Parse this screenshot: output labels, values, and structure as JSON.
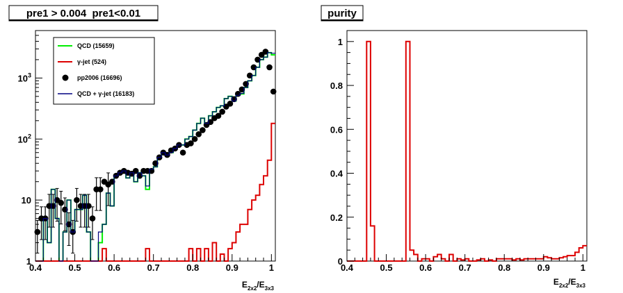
{
  "chart_data": [
    {
      "type": "histogram",
      "title": "pre1 > 0.004  pre1<0.01",
      "xlabel": "E_{2x2}/E_{3x3}",
      "ylabel": "",
      "xlim": [
        0.4,
        1.01
      ],
      "ylim": [
        1,
        6000
      ],
      "yscale": "log",
      "grid": false,
      "legend_position": "top-left",
      "x_ticks": [
        "0.4",
        "0.5",
        "0.6",
        "0.7",
        "0.8",
        "0.9",
        "1"
      ],
      "y_ticks": [
        {
          "value": 1,
          "label": "1"
        },
        {
          "value": 10,
          "label": "10"
        },
        {
          "value": 100,
          "label": "10^2"
        },
        {
          "value": 1000,
          "label": "10^3"
        }
      ],
      "bin_edges": [
        0.4,
        0.41,
        0.42,
        0.43,
        0.44,
        0.45,
        0.46,
        0.47,
        0.48,
        0.49,
        0.5,
        0.51,
        0.52,
        0.53,
        0.54,
        0.55,
        0.56,
        0.57,
        0.58,
        0.59,
        0.6,
        0.61,
        0.62,
        0.63,
        0.64,
        0.65,
        0.66,
        0.67,
        0.68,
        0.69,
        0.7,
        0.71,
        0.72,
        0.73,
        0.74,
        0.75,
        0.76,
        0.77,
        0.78,
        0.79,
        0.8,
        0.81,
        0.82,
        0.83,
        0.84,
        0.85,
        0.86,
        0.87,
        0.88,
        0.89,
        0.9,
        0.91,
        0.92,
        0.93,
        0.94,
        0.95,
        0.96,
        0.97,
        0.98,
        0.99,
        1.0,
        1.01
      ],
      "series": [
        {
          "name": "QCD (15659)",
          "kind": "step",
          "color": "#00ee00",
          "values": [
            1,
            1,
            5,
            2,
            15,
            5,
            1,
            3,
            10,
            3,
            7,
            7,
            12,
            3,
            1,
            1,
            2,
            4,
            13,
            8,
            25,
            28,
            30,
            23,
            28,
            20,
            28,
            25,
            15,
            32,
            35,
            50,
            60,
            55,
            60,
            70,
            80,
            80,
            100,
            110,
            140,
            180,
            220,
            180,
            240,
            280,
            330,
            350,
            460,
            500,
            420,
            520,
            550,
            700,
            900,
            1100,
            1500,
            2000,
            2200,
            2600,
            2400
          ],
          "color_role": "legend"
        },
        {
          "name": "γ-jet (524)",
          "kind": "step",
          "color": "#dd0000",
          "values": [
            0,
            0,
            0,
            0,
            0,
            0,
            0,
            0,
            0,
            0,
            0,
            0,
            0,
            0,
            0,
            0,
            0,
            1.6,
            0,
            0,
            0,
            0,
            0,
            0,
            0,
            0,
            0,
            0,
            1.6,
            0,
            0,
            0,
            0,
            0,
            0,
            0,
            0,
            0,
            0,
            1.6,
            0,
            1.6,
            0,
            1.6,
            1,
            2,
            0,
            1.3,
            1,
            1.6,
            2,
            3,
            4,
            4,
            7,
            10,
            12,
            18,
            25,
            45,
            180
          ]
        },
        {
          "name": "pp2006 (16696)",
          "kind": "markers",
          "color": "#000000",
          "x": [
            0.405,
            0.415,
            0.425,
            0.435,
            0.445,
            0.455,
            0.465,
            0.475,
            0.485,
            0.495,
            0.505,
            0.515,
            0.525,
            0.535,
            0.545,
            0.555,
            0.565,
            0.575,
            0.585,
            0.595,
            0.605,
            0.615,
            0.625,
            0.635,
            0.645,
            0.655,
            0.665,
            0.675,
            0.685,
            0.695,
            0.705,
            0.715,
            0.725,
            0.735,
            0.745,
            0.755,
            0.765,
            0.775,
            0.785,
            0.795,
            0.805,
            0.815,
            0.825,
            0.835,
            0.845,
            0.855,
            0.865,
            0.875,
            0.885,
            0.895,
            0.905,
            0.915,
            0.925,
            0.935,
            0.945,
            0.955,
            0.965,
            0.975,
            0.985,
            0.995,
            1.005
          ],
          "values": [
            3,
            5,
            5,
            8,
            8,
            10,
            9,
            7,
            4,
            3,
            10,
            8,
            8,
            8,
            5,
            15,
            15,
            20,
            18,
            20,
            25,
            28,
            30,
            28,
            27,
            30,
            25,
            30,
            30,
            30,
            40,
            50,
            60,
            55,
            65,
            70,
            80,
            60,
            80,
            85,
            100,
            120,
            140,
            170,
            190,
            220,
            240,
            280,
            340,
            380,
            450,
            550,
            650,
            800,
            1100,
            1500,
            2000,
            2400,
            2700,
            1500,
            600
          ]
        },
        {
          "name": "QCD + γ-jet (16183)",
          "kind": "step",
          "color": "#000080",
          "values": [
            1,
            1,
            5,
            2,
            15,
            5,
            1,
            3,
            10,
            3,
            7,
            7,
            12,
            3,
            1,
            1,
            3,
            4,
            13,
            8,
            25,
            28,
            30,
            23,
            28,
            20,
            28,
            25,
            17,
            32,
            35,
            50,
            60,
            55,
            60,
            70,
            80,
            80,
            100,
            110,
            140,
            180,
            220,
            180,
            240,
            280,
            330,
            350,
            460,
            500,
            420,
            520,
            560,
            700,
            900,
            1100,
            1500,
            2000,
            2200,
            2600,
            2550
          ]
        }
      ]
    },
    {
      "type": "histogram",
      "title": "purity",
      "xlabel": "E_{2x2}/E_{3x3}",
      "ylabel": "",
      "xlim": [
        0.4,
        1.01
      ],
      "ylim": [
        0,
        1.05
      ],
      "yscale": "linear",
      "grid": false,
      "x_ticks": [
        "0.4",
        "0.5",
        "0.6",
        "0.7",
        "0.8",
        "0.9",
        "1"
      ],
      "y_ticks": [
        "0",
        "0.2",
        "0.4",
        "0.6",
        "0.8",
        "1"
      ],
      "bin_edges": [
        0.4,
        0.41,
        0.42,
        0.43,
        0.44,
        0.45,
        0.46,
        0.47,
        0.48,
        0.49,
        0.5,
        0.51,
        0.52,
        0.53,
        0.54,
        0.55,
        0.56,
        0.57,
        0.58,
        0.59,
        0.6,
        0.61,
        0.62,
        0.63,
        0.64,
        0.65,
        0.66,
        0.67,
        0.68,
        0.69,
        0.7,
        0.71,
        0.72,
        0.73,
        0.74,
        0.75,
        0.76,
        0.77,
        0.78,
        0.79,
        0.8,
        0.81,
        0.82,
        0.83,
        0.84,
        0.85,
        0.86,
        0.87,
        0.88,
        0.89,
        0.9,
        0.91,
        0.92,
        0.93,
        0.94,
        0.95,
        0.96,
        0.97,
        0.98,
        0.99,
        1.0,
        1.01
      ],
      "series": [
        {
          "name": "purity",
          "kind": "step",
          "color": "#dd0000",
          "values": [
            0,
            0,
            0,
            0,
            0,
            1.0,
            0.16,
            0,
            0,
            0,
            0,
            0,
            0,
            0,
            0,
            1.0,
            0.05,
            0.03,
            0,
            0.01,
            0.01,
            0,
            0.02,
            0.03,
            0.01,
            0,
            0.03,
            0,
            0.01,
            0.005,
            0.01,
            0,
            0,
            0.005,
            0.01,
            0,
            0.005,
            0,
            0.01,
            0.01,
            0.01,
            0.01,
            0.005,
            0.01,
            0.005,
            0.01,
            0.01,
            0.01,
            0.01,
            0.01,
            0.02,
            0.015,
            0.01,
            0.01,
            0.015,
            0.02,
            0.025,
            0.025,
            0.04,
            0.06,
            0.07
          ]
        }
      ]
    }
  ]
}
